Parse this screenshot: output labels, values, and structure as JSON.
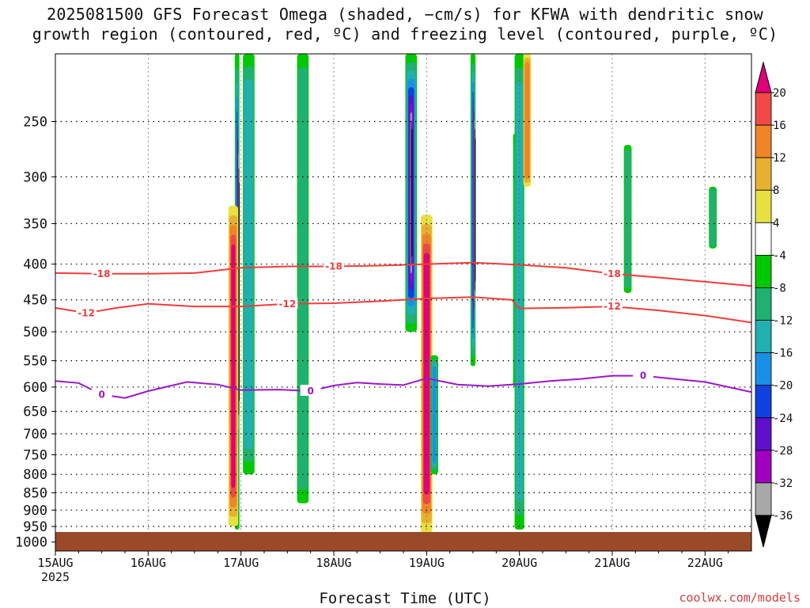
{
  "title_line1": "2025081500 GFS Forecast Omega (shaded, −cm/s) for KFWA with dendritic snow",
  "title_line2": "growth region (contoured, red, ºC) and freezing level (contoured, purple, ºC)",
  "credit": "coolwx.com/models",
  "chart_data": {
    "type": "heatmap",
    "title": "2025081500 GFS Forecast Omega (shaded, −cm/s) for KFWA with dendritic snow growth region (contoured, red, ºC) and freezing level (contoured, purple, ºC)",
    "xlabel": "Forecast Time (UTC)",
    "ylabel": "",
    "x_ticks": [
      "15AUG\n2025",
      "16AUG",
      "17AUG",
      "18AUG",
      "19AUG",
      "20AUG",
      "21AUG",
      "22AUG"
    ],
    "x_tick_hours": [
      0,
      24,
      48,
      72,
      96,
      120,
      144,
      168
    ],
    "x_range_hours": [
      0,
      180
    ],
    "y_ticks": [
      250,
      300,
      350,
      400,
      450,
      500,
      550,
      600,
      650,
      700,
      750,
      800,
      850,
      900,
      950,
      1000
    ],
    "y_scale": "log-pressure",
    "y_range_hPa": [
      200,
      1030
    ],
    "grid": true,
    "colorbar": {
      "levels": [
        20,
        16,
        12,
        8,
        4,
        -4,
        -8,
        -12,
        -16,
        -20,
        -24,
        -28,
        -32,
        -36
      ],
      "colors": [
        "#e0007a",
        "#f04848",
        "#f08428",
        "#e8b030",
        "#e8e040",
        "#ffffff",
        "#00c800",
        "#20b070",
        "#20b0b0",
        "#1890e8",
        "#1040e0",
        "#6010c8",
        "#a000c0",
        "#a8a8a8",
        "#000000"
      ]
    },
    "omega_features": [
      {
        "hour": 47,
        "width_h": 1.2,
        "p_top": 200,
        "p_bot": 960,
        "value": -40
      },
      {
        "hour": 46,
        "width_h": 2.5,
        "p_top": 330,
        "p_bot": 950,
        "value": 20
      },
      {
        "hour": 50,
        "width_h": 3,
        "p_top": 200,
        "p_bot": 800,
        "value": -12
      },
      {
        "hour": 64,
        "width_h": 3,
        "p_top": 200,
        "p_bot": 880,
        "value": -10
      },
      {
        "hour": 92,
        "width_h": 3,
        "p_top": 200,
        "p_bot": 500,
        "value": -40
      },
      {
        "hour": 96,
        "width_h": 3,
        "p_top": 340,
        "p_bot": 970,
        "value": 22
      },
      {
        "hour": 98,
        "width_h": 2,
        "p_top": 540,
        "p_bot": 800,
        "value": -16
      },
      {
        "hour": 108,
        "width_h": 1.3,
        "p_top": 200,
        "p_bot": 560,
        "value": -40
      },
      {
        "hour": 119,
        "width_h": 1.3,
        "p_top": 260,
        "p_bot": 600,
        "value": -40
      },
      {
        "hour": 120,
        "width_h": 2.5,
        "p_top": 200,
        "p_bot": 960,
        "value": -12
      },
      {
        "hour": 122,
        "width_h": 2,
        "p_top": 200,
        "p_bot": 310,
        "value": 14
      },
      {
        "hour": 148,
        "width_h": 2,
        "p_top": 270,
        "p_bot": 440,
        "value": -8
      },
      {
        "hour": 170,
        "width_h": 2,
        "p_top": 310,
        "p_bot": 380,
        "value": -8
      }
    ],
    "contours": [
      {
        "label": "-18",
        "color": "#f03c3c",
        "points": [
          [
            0,
            412
          ],
          [
            12,
            413
          ],
          [
            24,
            413
          ],
          [
            36,
            412
          ],
          [
            48,
            405
          ],
          [
            60,
            403
          ],
          [
            72,
            403
          ],
          [
            84,
            402
          ],
          [
            96,
            400
          ],
          [
            108,
            398
          ],
          [
            120,
            401
          ],
          [
            132,
            405
          ],
          [
            144,
            413
          ],
          [
            156,
            418
          ],
          [
            168,
            424
          ],
          [
            180,
            430
          ]
        ]
      },
      {
        "label": "-12",
        "color": "#f03c3c",
        "points": [
          [
            0,
            462
          ],
          [
            8,
            470
          ],
          [
            16,
            462
          ],
          [
            24,
            456
          ],
          [
            36,
            460
          ],
          [
            48,
            460
          ],
          [
            60,
            456
          ],
          [
            72,
            455
          ],
          [
            84,
            452
          ],
          [
            96,
            448
          ],
          [
            108,
            446
          ],
          [
            118,
            450
          ],
          [
            120,
            463
          ],
          [
            132,
            462
          ],
          [
            144,
            460
          ],
          [
            156,
            466
          ],
          [
            168,
            474
          ],
          [
            180,
            485
          ]
        ]
      },
      {
        "label": "0",
        "color": "#9a18c8",
        "points": [
          [
            0,
            588
          ],
          [
            6,
            592
          ],
          [
            12,
            615
          ],
          [
            18,
            622
          ],
          [
            24,
            608
          ],
          [
            34,
            590
          ],
          [
            42,
            595
          ],
          [
            48,
            606
          ],
          [
            58,
            605
          ],
          [
            66,
            608
          ],
          [
            72,
            597
          ],
          [
            78,
            591
          ],
          [
            84,
            594
          ],
          [
            90,
            596
          ],
          [
            96,
            583
          ],
          [
            104,
            595
          ],
          [
            112,
            598
          ],
          [
            120,
            594
          ],
          [
            128,
            588
          ],
          [
            136,
            584
          ],
          [
            144,
            578
          ],
          [
            152,
            578
          ],
          [
            160,
            584
          ],
          [
            168,
            590
          ],
          [
            174,
            600
          ],
          [
            180,
            610
          ]
        ]
      }
    ]
  }
}
